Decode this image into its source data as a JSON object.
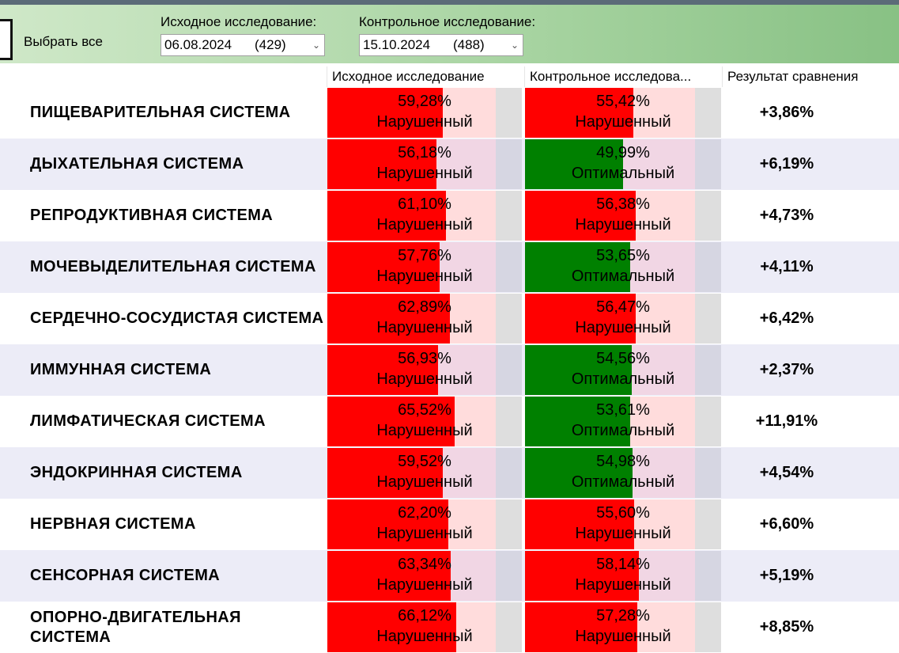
{
  "toolbar": {
    "select_all": "Выбрать все",
    "baseline_label": "Исходное исследование:",
    "baseline_date": "06.08.2024",
    "baseline_count": "(429)",
    "control_label": "Контрольное исследование:",
    "control_date": "15.10.2024",
    "control_count": "(488)"
  },
  "table": {
    "columns": [
      "Исходное исследование",
      "Контрольное исследова...",
      "Результат сравнения"
    ],
    "rows": [
      {
        "name": "ПИЩЕВАРИТЕЛЬНАЯ СИСТЕМА",
        "baseline": {
          "value": 59.28,
          "label": "59,28%",
          "status": "Нарушенный",
          "color": "#ff0000"
        },
        "control": {
          "value": 55.42,
          "label": "55,42%",
          "status": "Нарушенный",
          "color": "#ff0000"
        },
        "result": "+3,86%"
      },
      {
        "name": "ДЫХАТЕЛЬНАЯ СИСТЕМА",
        "baseline": {
          "value": 56.18,
          "label": "56,18%",
          "status": "Нарушенный",
          "color": "#ff0000"
        },
        "control": {
          "value": 49.99,
          "label": "49,99%",
          "status": "Оптимальный",
          "color": "#008000"
        },
        "result": "+6,19%"
      },
      {
        "name": "РЕПРОДУКТИВНАЯ СИСТЕМА",
        "baseline": {
          "value": 61.1,
          "label": "61,10%",
          "status": "Нарушенный",
          "color": "#ff0000"
        },
        "control": {
          "value": 56.38,
          "label": "56,38%",
          "status": "Нарушенный",
          "color": "#ff0000"
        },
        "result": "+4,73%"
      },
      {
        "name": "МОЧЕВЫДЕЛИТЕЛЬНАЯ СИСТЕМА",
        "baseline": {
          "value": 57.76,
          "label": "57,76%",
          "status": "Нарушенный",
          "color": "#ff0000"
        },
        "control": {
          "value": 53.65,
          "label": "53,65%",
          "status": "Оптимальный",
          "color": "#008000"
        },
        "result": "+4,11%"
      },
      {
        "name": "СЕРДЕЧНО-СОСУДИСТАЯ СИСТЕМА",
        "baseline": {
          "value": 62.89,
          "label": "62,89%",
          "status": "Нарушенный",
          "color": "#ff0000"
        },
        "control": {
          "value": 56.47,
          "label": "56,47%",
          "status": "Нарушенный",
          "color": "#ff0000"
        },
        "result": "+6,42%"
      },
      {
        "name": "ИММУННАЯ СИСТЕМА",
        "baseline": {
          "value": 56.93,
          "label": "56,93%",
          "status": "Нарушенный",
          "color": "#ff0000"
        },
        "control": {
          "value": 54.56,
          "label": "54,56%",
          "status": "Оптимальный",
          "color": "#008000"
        },
        "result": "+2,37%"
      },
      {
        "name": "ЛИМФАТИЧЕСКАЯ СИСТЕМА",
        "baseline": {
          "value": 65.52,
          "label": "65,52%",
          "status": "Нарушенный",
          "color": "#ff0000"
        },
        "control": {
          "value": 53.61,
          "label": "53,61%",
          "status": "Оптимальный",
          "color": "#008000"
        },
        "result": "+11,91%"
      },
      {
        "name": "ЭНДОКРИННАЯ СИСТЕМА",
        "baseline": {
          "value": 59.52,
          "label": "59,52%",
          "status": "Нарушенный",
          "color": "#ff0000"
        },
        "control": {
          "value": 54.98,
          "label": "54,98%",
          "status": "Оптимальный",
          "color": "#008000"
        },
        "result": "+4,54%"
      },
      {
        "name": "НЕРВНАЯ СИСТЕМА",
        "baseline": {
          "value": 62.2,
          "label": "62,20%",
          "status": "Нарушенный",
          "color": "#ff0000"
        },
        "control": {
          "value": 55.6,
          "label": "55,60%",
          "status": "Нарушенный",
          "color": "#ff0000"
        },
        "result": "+6,60%"
      },
      {
        "name": "СЕНСОРНАЯ СИСТЕМА",
        "baseline": {
          "value": 63.34,
          "label": "63,34%",
          "status": "Нарушенный",
          "color": "#ff0000"
        },
        "control": {
          "value": 58.14,
          "label": "58,14%",
          "status": "Нарушенный",
          "color": "#ff0000"
        },
        "result": "+5,19%"
      },
      {
        "name": "ОПОРНО-ДВИГАТЕЛЬНАЯ СИСТЕМА",
        "baseline": {
          "value": 66.12,
          "label": "66,12%",
          "status": "Нарушенный",
          "color": "#ff0000"
        },
        "control": {
          "value": 57.28,
          "label": "57,28%",
          "status": "Нарушенный",
          "color": "#ff0000"
        },
        "result": "+8,85%"
      }
    ]
  }
}
